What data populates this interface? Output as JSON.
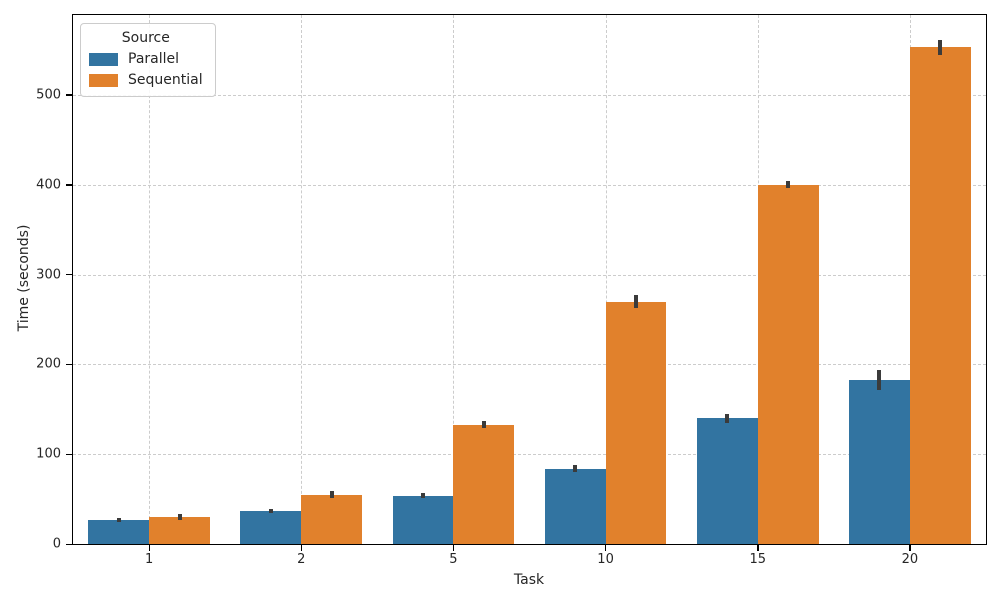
{
  "figure": {
    "background": "#ffffff"
  },
  "chart_data": {
    "type": "bar",
    "title": "",
    "xlabel": "Task",
    "ylabel": "Time (seconds)",
    "legend_title": "Source",
    "legend_position": "upper left",
    "grid": true,
    "categories": [
      "1",
      "2",
      "5",
      "10",
      "15",
      "20"
    ],
    "series": [
      {
        "name": "Parallel",
        "color": "#3274a1",
        "values": [
          27,
          37,
          54,
          84,
          140,
          183
        ],
        "errors": [
          2,
          2,
          3,
          4,
          5,
          11
        ]
      },
      {
        "name": "Sequential",
        "color": "#e1812c",
        "values": [
          30,
          55,
          133,
          270,
          400,
          553
        ],
        "errors": [
          3,
          4,
          4,
          7,
          4,
          8
        ]
      }
    ],
    "ylim": [
      0,
      589
    ],
    "yticks": [
      0,
      100,
      200,
      300,
      400,
      500
    ],
    "colors": {
      "grid": "#cccccc",
      "error_bar": "#3b3b3b",
      "spine": "#000000",
      "tick_label": "#262626"
    }
  }
}
